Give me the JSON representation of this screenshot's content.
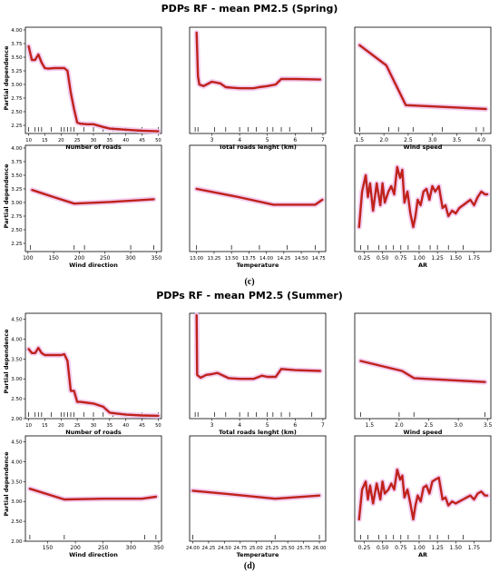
{
  "figures": [
    {
      "title": "PDPs RF - mean PM2.5 (Spring)",
      "caption": "(c)",
      "y_axis_label": "Partial dependence"
    },
    {
      "title": "PDPs RF - mean PM2.5 (Summer)",
      "caption": "(d)",
      "y_axis_label": "Partial dependence"
    }
  ],
  "colors": {
    "line": "#b02a1e",
    "line_core": "#d11a1a",
    "band": "#f3c4ee",
    "axis": "#000000"
  },
  "chart_data": [
    {
      "type": "line",
      "figure": 0,
      "row": 0,
      "col": 0,
      "xlabel": "Number of roads",
      "xlim": [
        9,
        51
      ],
      "ylim": [
        2.1,
        4.05
      ],
      "xticks": [
        10,
        15,
        20,
        25,
        30,
        35,
        40,
        45,
        50
      ],
      "yticks": [
        2.25,
        2.5,
        2.75,
        3.0,
        3.25,
        3.5,
        3.75,
        4.0
      ],
      "rug": [
        10,
        12,
        13,
        14,
        17,
        20,
        21,
        22,
        23,
        24,
        27,
        30,
        33,
        36,
        40,
        45,
        50
      ],
      "x": [
        10,
        11,
        12,
        13,
        14,
        15,
        16,
        18,
        20,
        21,
        22,
        23,
        24,
        25,
        26,
        28,
        30,
        33,
        35,
        40,
        45,
        50
      ],
      "y": [
        3.7,
        3.45,
        3.45,
        3.55,
        3.4,
        3.3,
        3.29,
        3.3,
        3.3,
        3.3,
        3.25,
        2.85,
        2.55,
        2.3,
        2.28,
        2.27,
        2.27,
        2.22,
        2.19,
        2.17,
        2.15,
        2.14
      ]
    },
    {
      "type": "line",
      "figure": 0,
      "row": 0,
      "col": 1,
      "xlabel": "Total roads lenght (km)",
      "xlim": [
        2.2,
        7.1
      ],
      "ylim": [
        2.1,
        4.05
      ],
      "xticks": [
        3,
        4,
        5,
        6,
        7
      ],
      "yticks": [],
      "rug": [
        2.4,
        2.5,
        3.1,
        3.5,
        4.0,
        4.3,
        4.6,
        5.0,
        5.2,
        5.5,
        5.8,
        6.6
      ],
      "x": [
        2.45,
        2.5,
        2.55,
        2.7,
        3.0,
        3.3,
        3.5,
        4.0,
        4.5,
        4.7,
        5.0,
        5.3,
        5.5,
        6.0,
        6.9
      ],
      "y": [
        3.95,
        3.15,
        3.0,
        2.97,
        3.05,
        3.02,
        2.95,
        2.93,
        2.93,
        2.95,
        2.97,
        3.0,
        3.1,
        3.1,
        3.09
      ]
    },
    {
      "type": "line",
      "figure": 0,
      "row": 0,
      "col": 2,
      "xlabel": "Wind speed",
      "xlim": [
        1.4,
        4.2
      ],
      "ylim": [
        2.1,
        4.05
      ],
      "xticks": [
        1.5,
        2.0,
        2.5,
        3.0,
        3.5,
        4.0
      ],
      "xtick_labels": [
        "1.5",
        "2.0",
        "2.5",
        "3.0",
        "3.5",
        "4.0"
      ],
      "yticks": [],
      "rug": [
        1.5,
        2.1,
        2.3,
        2.6,
        3.2,
        3.9,
        4.05
      ],
      "x": [
        1.5,
        2.05,
        2.45,
        4.1
      ],
      "y": [
        3.72,
        3.35,
        2.62,
        2.55
      ]
    },
    {
      "type": "line",
      "figure": 0,
      "row": 1,
      "col": 0,
      "xlabel": "Wind direction",
      "xlim": [
        95,
        360
      ],
      "ylim": [
        2.1,
        4.05
      ],
      "xticks": [
        100,
        150,
        200,
        250,
        300,
        350
      ],
      "yticks": [
        2.25,
        2.5,
        2.75,
        3.0,
        3.25,
        3.5,
        3.75,
        4.0
      ],
      "rug": [
        105,
        190,
        210,
        300,
        345
      ],
      "x": [
        108,
        150,
        190,
        260,
        345
      ],
      "y": [
        3.23,
        3.1,
        2.98,
        3.01,
        3.06
      ]
    },
    {
      "type": "line",
      "figure": 0,
      "row": 1,
      "col": 1,
      "xlabel": "Temperature",
      "xlim": [
        12.9,
        14.85
      ],
      "ylim": [
        2.1,
        4.05
      ],
      "xticks": [
        13.0,
        13.25,
        13.5,
        13.75,
        14.0,
        14.25,
        14.5,
        14.75
      ],
      "xtick_labels": [
        "13.00",
        "13.25",
        "13.50",
        "13.75",
        "14.00",
        "14.25",
        "14.50",
        "14.75"
      ],
      "yticks": [],
      "rug": [
        13.0,
        13.5,
        13.9,
        14.3,
        14.7
      ],
      "x": [
        13.0,
        13.6,
        14.1,
        14.7,
        14.8
      ],
      "y": [
        3.25,
        3.1,
        2.96,
        2.96,
        3.05
      ]
    },
    {
      "type": "line",
      "figure": 0,
      "row": 1,
      "col": 2,
      "xlabel": "AR",
      "xlim": [
        0.12,
        1.98
      ],
      "ylim": [
        2.1,
        4.05
      ],
      "xticks": [
        0.25,
        0.5,
        0.75,
        1.0,
        1.25,
        1.5,
        1.75
      ],
      "xtick_labels": [
        "0.25",
        "0.50",
        "0.75",
        "1.00",
        "1.25",
        "1.50",
        "1.75"
      ],
      "yticks": [],
      "rug": [
        0.2,
        0.3,
        0.45,
        0.55,
        0.65,
        0.75,
        0.85,
        1.0,
        1.15,
        1.25,
        1.4,
        1.6
      ],
      "x": [
        0.18,
        0.22,
        0.27,
        0.3,
        0.33,
        0.37,
        0.42,
        0.47,
        0.5,
        0.53,
        0.58,
        0.62,
        0.66,
        0.7,
        0.74,
        0.77,
        0.8,
        0.84,
        0.88,
        0.92,
        0.95,
        0.98,
        1.02,
        1.06,
        1.1,
        1.14,
        1.18,
        1.22,
        1.27,
        1.32,
        1.36,
        1.4,
        1.45,
        1.5,
        1.55,
        1.6,
        1.65,
        1.7,
        1.75,
        1.8,
        1.85,
        1.9,
        1.93
      ],
      "y": [
        2.55,
        3.2,
        3.5,
        3.1,
        3.35,
        2.85,
        3.35,
        2.95,
        3.35,
        3.0,
        3.2,
        3.3,
        3.15,
        3.65,
        3.45,
        3.6,
        3.0,
        3.2,
        2.8,
        2.55,
        2.75,
        3.05,
        2.95,
        3.2,
        3.25,
        3.05,
        3.3,
        3.2,
        3.3,
        2.9,
        2.95,
        2.75,
        2.85,
        2.8,
        2.9,
        2.95,
        3.0,
        3.05,
        2.95,
        3.1,
        3.2,
        3.15,
        3.15
      ]
    },
    {
      "type": "line",
      "figure": 1,
      "row": 0,
      "col": 0,
      "xlabel": "Number of roads",
      "xlim": [
        9,
        51
      ],
      "ylim": [
        2.0,
        4.65
      ],
      "xticks": [
        10,
        15,
        20,
        25,
        30,
        35,
        40,
        45,
        50
      ],
      "yticks": [
        2.0,
        2.5,
        3.0,
        3.5,
        4.0,
        4.5
      ],
      "rug": [
        10,
        12,
        13,
        14,
        17,
        20,
        21,
        22,
        23,
        24,
        27,
        30,
        33,
        36,
        40,
        45,
        50
      ],
      "x": [
        10,
        11,
        12,
        13,
        14,
        15,
        18,
        20,
        21,
        22,
        23,
        24,
        25,
        26,
        28,
        30,
        33,
        35,
        40,
        45,
        50
      ],
      "y": [
        3.75,
        3.65,
        3.65,
        3.78,
        3.65,
        3.6,
        3.6,
        3.6,
        3.62,
        3.45,
        2.7,
        2.7,
        2.42,
        2.42,
        2.4,
        2.38,
        2.3,
        2.15,
        2.1,
        2.08,
        2.07
      ]
    },
    {
      "type": "line",
      "figure": 1,
      "row": 0,
      "col": 1,
      "xlabel": "Total roads lenght (km)",
      "xlim": [
        2.2,
        7.1
      ],
      "ylim": [
        2.0,
        4.65
      ],
      "xticks": [
        3,
        4,
        5,
        6,
        7
      ],
      "yticks": [],
      "rug": [
        2.4,
        2.5,
        3.1,
        3.5,
        4.0,
        4.3,
        4.6,
        5.0,
        5.2,
        5.5,
        5.8,
        6.6
      ],
      "x": [
        2.45,
        2.47,
        2.5,
        2.6,
        2.8,
        3.0,
        3.2,
        3.6,
        4.0,
        4.5,
        4.8,
        5.0,
        5.3,
        5.5,
        6.0,
        6.9
      ],
      "y": [
        4.6,
        3.1,
        3.08,
        3.03,
        3.1,
        3.12,
        3.15,
        3.02,
        3.0,
        3.0,
        3.08,
        3.05,
        3.05,
        3.25,
        3.22,
        3.2
      ]
    },
    {
      "type": "line",
      "figure": 1,
      "row": 0,
      "col": 2,
      "xlabel": "Wind speed",
      "xlim": [
        1.25,
        3.55
      ],
      "ylim": [
        2.0,
        4.65
      ],
      "xticks": [
        1.5,
        2.0,
        2.5,
        3.0,
        3.5
      ],
      "xtick_labels": [
        "1.5",
        "2.0",
        "2.5",
        "3.0",
        "3.5"
      ],
      "yticks": [],
      "rug": [
        1.35,
        2.0,
        2.25,
        3.45
      ],
      "x": [
        1.35,
        2.05,
        2.25,
        3.45
      ],
      "y": [
        3.45,
        3.2,
        3.02,
        2.92
      ]
    },
    {
      "type": "line",
      "figure": 1,
      "row": 1,
      "col": 0,
      "xlabel": "Wind direction",
      "xlim": [
        110,
        355
      ],
      "ylim": [
        2.0,
        4.65
      ],
      "xticks": [
        150,
        200,
        250,
        300,
        350
      ],
      "yticks": [
        2.0,
        2.5,
        3.0,
        3.5,
        4.0,
        4.5
      ],
      "rug": [
        118,
        180,
        325,
        345
      ],
      "x": [
        118,
        180,
        250,
        320,
        345
      ],
      "y": [
        3.32,
        3.05,
        3.07,
        3.07,
        3.12
      ]
    },
    {
      "type": "line",
      "figure": 1,
      "row": 1,
      "col": 1,
      "xlabel": "Temperature",
      "xlim": [
        23.95,
        26.1
      ],
      "ylim": [
        2.0,
        4.65
      ],
      "xticks": [
        24.0,
        24.25,
        24.5,
        24.75,
        25.0,
        25.25,
        25.5,
        25.75,
        26.0
      ],
      "xtick_labels": [
        "24.00",
        "24.25",
        "24.50",
        "24.75",
        "25.00",
        "25.25",
        "25.50",
        "25.75",
        "26.00"
      ],
      "yticks": [],
      "rug": [
        24.0,
        25.3,
        26.0
      ],
      "x": [
        24.0,
        24.6,
        25.3,
        26.0
      ],
      "y": [
        3.27,
        3.18,
        3.07,
        3.15
      ]
    },
    {
      "type": "line",
      "figure": 1,
      "row": 1,
      "col": 2,
      "xlabel": "AR",
      "xlim": [
        0.12,
        1.98
      ],
      "ylim": [
        2.0,
        4.65
      ],
      "xticks": [
        0.25,
        0.5,
        0.75,
        1.0,
        1.25,
        1.5,
        1.75
      ],
      "xtick_labels": [
        "0.25",
        "0.50",
        "0.75",
        "1.00",
        "1.25",
        "1.50",
        "1.75"
      ],
      "yticks": [],
      "rug": [
        0.2,
        0.3,
        0.45,
        0.55,
        0.65,
        0.75,
        0.85,
        1.0,
        1.15,
        1.25,
        1.4,
        1.6
      ],
      "x": [
        0.18,
        0.22,
        0.27,
        0.3,
        0.33,
        0.37,
        0.42,
        0.47,
        0.5,
        0.53,
        0.58,
        0.62,
        0.66,
        0.7,
        0.74,
        0.77,
        0.8,
        0.84,
        0.88,
        0.92,
        0.95,
        0.98,
        1.02,
        1.06,
        1.1,
        1.14,
        1.18,
        1.22,
        1.27,
        1.32,
        1.36,
        1.4,
        1.45,
        1.5,
        1.55,
        1.6,
        1.65,
        1.7,
        1.75,
        1.8,
        1.85,
        1.9,
        1.93
      ],
      "y": [
        2.55,
        3.3,
        3.5,
        3.05,
        3.4,
        2.95,
        3.45,
        3.05,
        3.5,
        3.2,
        3.3,
        3.45,
        3.3,
        3.8,
        3.55,
        3.65,
        3.1,
        3.3,
        2.95,
        2.55,
        2.9,
        3.15,
        3.0,
        3.35,
        3.4,
        3.2,
        3.5,
        3.55,
        3.6,
        3.05,
        3.1,
        2.9,
        3.0,
        2.95,
        3.0,
        3.05,
        3.1,
        3.15,
        3.05,
        3.2,
        3.25,
        3.15,
        3.15
      ]
    }
  ]
}
